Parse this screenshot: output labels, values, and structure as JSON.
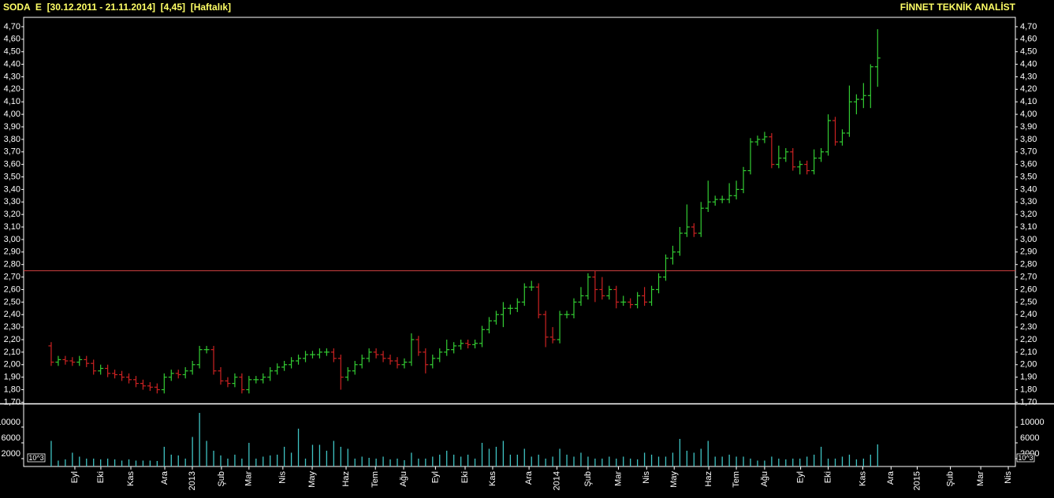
{
  "chart_data": {
    "type": "ohlc",
    "title": "SODA  E  [30.12.2011 - 21.11.2014]  [4,45]  [Haftalık]",
    "brand": "FİNNET TEKNİK ANALİST",
    "up_color": "#33cc33",
    "down_color": "#cc2222",
    "volume_color": "#3fc4c4",
    "reference_line": 2.75,
    "reference_color": "#d04040",
    "x": [
      0,
      1,
      2,
      3,
      4,
      5,
      6,
      7,
      8,
      9,
      10,
      11,
      12,
      13,
      14,
      15,
      16,
      17,
      18,
      19,
      20,
      21,
      22,
      23,
      24,
      25,
      26,
      27,
      28,
      29,
      30,
      31,
      32,
      33,
      34,
      35,
      36,
      37,
      38,
      39,
      40,
      41,
      42,
      43,
      44,
      45,
      46,
      47,
      48,
      49,
      50,
      51,
      52,
      53,
      54,
      55,
      56,
      57,
      58,
      59,
      60,
      61,
      62,
      63,
      64,
      65,
      66,
      67,
      68,
      69,
      70,
      71,
      72,
      73,
      74,
      75,
      76,
      77,
      78,
      79,
      80,
      81,
      82,
      83,
      84,
      85,
      86,
      87,
      88,
      89,
      90,
      91,
      92,
      93,
      94,
      95,
      96,
      97,
      98,
      99,
      100,
      101,
      102,
      103,
      104,
      105,
      106,
      107,
      108,
      109,
      110,
      111,
      112,
      113,
      114,
      115,
      116,
      117
    ],
    "open": [
      2.15,
      2.02,
      2.04,
      2.03,
      2.02,
      2.04,
      2.01,
      1.95,
      1.97,
      1.93,
      1.92,
      1.9,
      1.88,
      1.85,
      1.83,
      1.82,
      1.8,
      1.9,
      1.93,
      1.92,
      1.95,
      2.0,
      2.12,
      2.12,
      1.95,
      1.87,
      1.85,
      1.9,
      1.8,
      1.88,
      1.88,
      1.9,
      1.95,
      1.98,
      2.0,
      2.03,
      2.05,
      2.08,
      2.08,
      2.1,
      2.1,
      2.05,
      1.9,
      1.95,
      2.0,
      2.05,
      2.1,
      2.08,
      2.05,
      2.03,
      2.0,
      2.02,
      2.2,
      2.1,
      2.0,
      2.05,
      2.1,
      2.12,
      2.15,
      2.17,
      2.16,
      2.17,
      2.28,
      2.35,
      2.4,
      2.45,
      2.45,
      2.5,
      2.62,
      2.62,
      2.4,
      2.22,
      2.2,
      2.4,
      2.4,
      2.5,
      2.55,
      2.7,
      2.6,
      2.55,
      2.6,
      2.5,
      2.5,
      2.48,
      2.55,
      2.5,
      2.6,
      2.7,
      2.85,
      2.9,
      3.05,
      3.1,
      3.05,
      3.25,
      3.3,
      3.32,
      3.32,
      3.35,
      3.4,
      3.55,
      3.78,
      3.8,
      3.82,
      3.6,
      3.65,
      3.7,
      3.58,
      3.6,
      3.55,
      3.65,
      3.7,
      3.95,
      3.78,
      3.85,
      4.1,
      4.12,
      4.15,
      4.38
    ],
    "high": [
      2.18,
      2.07,
      2.07,
      2.06,
      2.07,
      2.07,
      2.04,
      2.0,
      2.0,
      1.96,
      1.95,
      1.93,
      1.91,
      1.88,
      1.86,
      1.85,
      1.93,
      1.96,
      1.96,
      1.98,
      2.03,
      2.15,
      2.15,
      2.15,
      1.98,
      1.9,
      1.93,
      1.93,
      1.91,
      1.91,
      1.93,
      1.98,
      2.01,
      2.03,
      2.06,
      2.08,
      2.11,
      2.11,
      2.13,
      2.13,
      2.13,
      2.08,
      1.98,
      2.03,
      2.08,
      2.13,
      2.13,
      2.11,
      2.08,
      2.06,
      2.05,
      2.25,
      2.23,
      2.13,
      2.08,
      2.13,
      2.2,
      2.18,
      2.2,
      2.2,
      2.2,
      2.31,
      2.38,
      2.43,
      2.5,
      2.48,
      2.53,
      2.65,
      2.67,
      2.65,
      2.43,
      2.3,
      2.43,
      2.43,
      2.53,
      2.62,
      2.73,
      2.75,
      2.7,
      2.63,
      2.63,
      2.55,
      2.53,
      2.58,
      2.62,
      2.63,
      2.73,
      2.88,
      2.95,
      3.1,
      3.28,
      3.13,
      3.3,
      3.47,
      3.35,
      3.35,
      3.45,
      3.47,
      3.58,
      3.81,
      3.83,
      3.86,
      3.85,
      3.75,
      3.73,
      3.73,
      3.63,
      3.63,
      3.72,
      3.73,
      4.0,
      3.98,
      3.88,
      4.23,
      4.16,
      4.25,
      4.4,
      4.68
    ],
    "low": [
      1.99,
      1.99,
      2.0,
      1.99,
      1.99,
      1.98,
      1.92,
      1.92,
      1.9,
      1.89,
      1.87,
      1.85,
      1.82,
      1.8,
      1.79,
      1.77,
      1.77,
      1.87,
      1.89,
      1.89,
      1.92,
      1.97,
      2.09,
      1.92,
      1.84,
      1.82,
      1.82,
      1.77,
      1.77,
      1.85,
      1.85,
      1.87,
      1.92,
      1.95,
      1.97,
      2.0,
      2.02,
      2.05,
      2.05,
      2.07,
      2.02,
      1.8,
      1.87,
      1.92,
      1.97,
      2.02,
      2.05,
      2.02,
      2.0,
      1.97,
      1.97,
      1.99,
      2.07,
      1.93,
      1.97,
      2.02,
      2.07,
      2.09,
      2.12,
      2.13,
      2.13,
      2.14,
      2.25,
      2.32,
      2.3,
      2.4,
      2.42,
      2.47,
      2.59,
      2.37,
      2.14,
      2.17,
      2.17,
      2.37,
      2.37,
      2.47,
      2.52,
      2.5,
      2.52,
      2.52,
      2.45,
      2.47,
      2.45,
      2.45,
      2.47,
      2.47,
      2.57,
      2.67,
      2.8,
      2.87,
      3.02,
      3.02,
      3.02,
      3.22,
      3.27,
      3.29,
      3.29,
      3.32,
      3.37,
      3.52,
      3.75,
      3.77,
      3.57,
      3.57,
      3.62,
      3.55,
      3.52,
      3.52,
      3.52,
      3.62,
      3.67,
      3.75,
      3.75,
      3.82,
      4.0,
      4.05,
      4.05,
      4.22
    ],
    "close": [
      2.02,
      2.04,
      2.03,
      2.02,
      2.04,
      2.01,
      1.95,
      1.97,
      1.93,
      1.92,
      1.9,
      1.88,
      1.85,
      1.83,
      1.82,
      1.8,
      1.9,
      1.93,
      1.92,
      1.95,
      2.0,
      2.12,
      2.12,
      1.95,
      1.87,
      1.85,
      1.9,
      1.8,
      1.88,
      1.88,
      1.9,
      1.95,
      1.98,
      2.0,
      2.03,
      2.05,
      2.08,
      2.08,
      2.1,
      2.1,
      2.05,
      1.9,
      1.95,
      2.0,
      2.05,
      2.1,
      2.08,
      2.05,
      2.03,
      2.0,
      2.02,
      2.2,
      2.1,
      2.0,
      2.05,
      2.1,
      2.12,
      2.15,
      2.17,
      2.16,
      2.17,
      2.28,
      2.35,
      2.4,
      2.45,
      2.45,
      2.5,
      2.62,
      2.62,
      2.4,
      2.22,
      2.2,
      2.4,
      2.4,
      2.5,
      2.55,
      2.7,
      2.6,
      2.55,
      2.6,
      2.5,
      2.5,
      2.48,
      2.55,
      2.5,
      2.6,
      2.7,
      2.85,
      2.9,
      3.05,
      3.1,
      3.05,
      3.25,
      3.3,
      3.32,
      3.32,
      3.35,
      3.4,
      3.55,
      3.78,
      3.8,
      3.82,
      3.6,
      3.65,
      3.7,
      3.58,
      3.6,
      3.55,
      3.65,
      3.7,
      3.95,
      3.78,
      3.85,
      4.1,
      4.12,
      4.15,
      4.38,
      4.45
    ],
    "volume": [
      6500,
      1500,
      1800,
      3500,
      2500,
      2000,
      2000,
      1800,
      2000,
      1800,
      1500,
      1800,
      1500,
      1500,
      1500,
      1400,
      5000,
      3000,
      2800,
      2000,
      7500,
      13600,
      6500,
      4000,
      2800,
      2000,
      3000,
      2000,
      6000,
      2000,
      2500,
      2800,
      3000,
      5000,
      3500,
      9600,
      2000,
      5500,
      5500,
      4000,
      6500,
      5000,
      4500,
      2000,
      2500,
      2200,
      2000,
      2500,
      1800,
      2000,
      1600,
      3500,
      2000,
      2000,
      2500,
      3000,
      4000,
      3000,
      2500,
      3000,
      2000,
      6000,
      4500,
      5000,
      6500,
      3000,
      3000,
      4500,
      2500,
      3000,
      2000,
      2500,
      4500,
      3000,
      2500,
      3500,
      2500,
      2000,
      2000,
      2500,
      2000,
      2500,
      2000,
      1800,
      3500,
      3000,
      2500,
      2500,
      3500,
      7000,
      4000,
      3500,
      4500,
      6500,
      2500,
      2500,
      3000,
      2500,
      2500,
      2000,
      1500,
      1500,
      2500,
      2000,
      1800,
      2000,
      2000,
      2500,
      3000,
      5000,
      2000,
      2000,
      2500,
      3000,
      1800,
      2000,
      3000,
      5600
    ],
    "xlim": [
      -3.9,
      136.5
    ],
    "xticks": [
      {
        "value": 3.35,
        "label": "Eyl"
      },
      {
        "value": 7.03,
        "label": "Eki"
      },
      {
        "value": 11.28,
        "label": "Kas"
      },
      {
        "value": 16.08,
        "label": "Ara"
      },
      {
        "value": 19.98,
        "label": "2013"
      },
      {
        "value": 24.1,
        "label": "Şub"
      },
      {
        "value": 28.0,
        "label": "Mar"
      },
      {
        "value": 32.8,
        "label": "Nis"
      },
      {
        "value": 36.95,
        "label": "May"
      },
      {
        "value": 41.75,
        "label": "Haz"
      },
      {
        "value": 45.9,
        "label": "Tem"
      },
      {
        "value": 49.9,
        "label": "Ağu"
      },
      {
        "value": 54.4,
        "label": "Eyl"
      },
      {
        "value": 58.6,
        "label": "Eki"
      },
      {
        "value": 62.5,
        "label": "Kas"
      },
      {
        "value": 67.65,
        "label": "Ara"
      },
      {
        "value": 71.6,
        "label": "2014"
      },
      {
        "value": 76.0,
        "label": "Şub"
      },
      {
        "value": 80.3,
        "label": "Mar"
      },
      {
        "value": 84.3,
        "label": "Nis"
      },
      {
        "value": 88.2,
        "label": "May"
      },
      {
        "value": 93.1,
        "label": "Haz"
      },
      {
        "value": 97.0,
        "label": "Tem"
      },
      {
        "value": 101.0,
        "label": "Ağu"
      },
      {
        "value": 106.1,
        "label": "Eyl"
      },
      {
        "value": 110.0,
        "label": "Eki"
      },
      {
        "value": 114.9,
        "label": "Kas"
      },
      {
        "value": 118.9,
        "label": "Ara"
      },
      {
        "value": 122.6,
        "label": "2015"
      },
      {
        "value": 127.3,
        "label": "Şub"
      },
      {
        "value": 131.6,
        "label": "Mar"
      },
      {
        "value": 135.5,
        "label": "Nis"
      }
    ],
    "ylim": [
      1.69,
      4.775
    ],
    "yticks": [
      {
        "value": 1.7,
        "label": "1,70"
      },
      {
        "value": 1.8,
        "label": "1,80"
      },
      {
        "value": 1.9,
        "label": "1,90"
      },
      {
        "value": 2.0,
        "label": "2,00"
      },
      {
        "value": 2.1,
        "label": "2,10"
      },
      {
        "value": 2.2,
        "label": "2,20"
      },
      {
        "value": 2.3,
        "label": "2,30"
      },
      {
        "value": 2.4,
        "label": "2,40"
      },
      {
        "value": 2.5,
        "label": "2,50"
      },
      {
        "value": 2.6,
        "label": "2,60"
      },
      {
        "value": 2.7,
        "label": "2,70"
      },
      {
        "value": 2.8,
        "label": "2,80"
      },
      {
        "value": 2.9,
        "label": "2,90"
      },
      {
        "value": 3.0,
        "label": "3,00"
      },
      {
        "value": 3.1,
        "label": "3,10"
      },
      {
        "value": 3.2,
        "label": "3,20"
      },
      {
        "value": 3.3,
        "label": "3,30"
      },
      {
        "value": 3.4,
        "label": "3,40"
      },
      {
        "value": 3.5,
        "label": "3,50"
      },
      {
        "value": 3.6,
        "label": "3,60"
      },
      {
        "value": 3.7,
        "label": "3,70"
      },
      {
        "value": 3.8,
        "label": "3,80"
      },
      {
        "value": 3.9,
        "label": "3,90"
      },
      {
        "value": 4.0,
        "label": "4,00"
      },
      {
        "value": 4.1,
        "label": "4,10"
      },
      {
        "value": 4.2,
        "label": "4,20"
      },
      {
        "value": 4.3,
        "label": "4,30"
      },
      {
        "value": 4.4,
        "label": "4,40"
      },
      {
        "value": 4.5,
        "label": "4,50"
      },
      {
        "value": 4.6,
        "label": "4,60"
      },
      {
        "value": 4.7,
        "label": "4,70"
      }
    ],
    "volume_unit": "10^3",
    "y2lim": [
      0,
      15800
    ],
    "y2ticks": [
      2000,
      6000,
      10000
    ]
  }
}
